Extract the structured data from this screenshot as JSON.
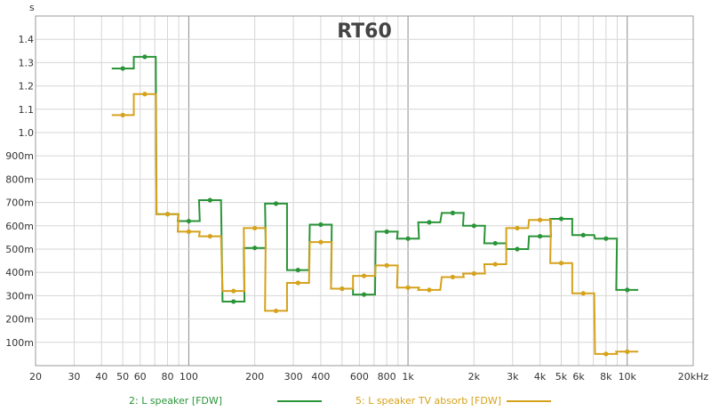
{
  "chart_data": {
    "type": "line",
    "title": "RT60",
    "ylabel": "s",
    "xlabel": "",
    "x_scale": "log",
    "xlim": [
      20,
      20000
    ],
    "ylim": [
      0,
      1.5
    ],
    "grid": true,
    "legend_position": "bottom",
    "x_ticks": [
      {
        "value": 20,
        "label": "20"
      },
      {
        "value": 30,
        "label": "30"
      },
      {
        "value": 40,
        "label": "40"
      },
      {
        "value": 50,
        "label": "50"
      },
      {
        "value": 60,
        "label": "60"
      },
      {
        "value": 80,
        "label": "80"
      },
      {
        "value": 100,
        "label": "100"
      },
      {
        "value": 200,
        "label": "200"
      },
      {
        "value": 300,
        "label": "300"
      },
      {
        "value": 400,
        "label": "400"
      },
      {
        "value": 600,
        "label": "600"
      },
      {
        "value": 800,
        "label": "800"
      },
      {
        "value": 1000,
        "label": "1k"
      },
      {
        "value": 2000,
        "label": "2k"
      },
      {
        "value": 3000,
        "label": "3k"
      },
      {
        "value": 4000,
        "label": "4k"
      },
      {
        "value": 5000,
        "label": "5k"
      },
      {
        "value": 6000,
        "label": "6k"
      },
      {
        "value": 8000,
        "label": "8k"
      },
      {
        "value": 10000,
        "label": "10k"
      },
      {
        "value": 20000,
        "label": "20kHz"
      }
    ],
    "y_ticks": [
      {
        "value": 0.1,
        "label": "100m"
      },
      {
        "value": 0.2,
        "label": "200m"
      },
      {
        "value": 0.3,
        "label": "300m"
      },
      {
        "value": 0.4,
        "label": "400m"
      },
      {
        "value": 0.5,
        "label": "500m"
      },
      {
        "value": 0.6,
        "label": "600m"
      },
      {
        "value": 0.7,
        "label": "700m"
      },
      {
        "value": 0.8,
        "label": "800m"
      },
      {
        "value": 0.9,
        "label": "900m"
      },
      {
        "value": 1.0,
        "label": "1.0"
      },
      {
        "value": 1.1,
        "label": "1.1"
      },
      {
        "value": 1.2,
        "label": "1.2"
      },
      {
        "value": 1.3,
        "label": "1.3"
      },
      {
        "value": 1.4,
        "label": "1.4"
      }
    ],
    "x": [
      50,
      63,
      80,
      100,
      125,
      160,
      200,
      250,
      315,
      400,
      500,
      630,
      800,
      1000,
      1250,
      1600,
      2000,
      2500,
      3150,
      4000,
      5000,
      6300,
      8000,
      10000
    ],
    "series": [
      {
        "name": "2: L speaker [FDW]",
        "color": "#2a9438",
        "values": [
          1.275,
          1.325,
          0.65,
          0.62,
          0.71,
          0.275,
          0.505,
          0.695,
          0.41,
          0.605,
          0.33,
          0.305,
          0.575,
          0.545,
          0.615,
          0.655,
          0.6,
          0.525,
          0.5,
          0.555,
          0.63,
          0.56,
          0.545,
          0.325
        ]
      },
      {
        "name": "5: L speaker TV absorb [FDW]",
        "color": "#d6a21c",
        "values": [
          1.075,
          1.165,
          0.65,
          0.575,
          0.555,
          0.32,
          0.59,
          0.235,
          0.355,
          0.53,
          0.33,
          0.385,
          0.43,
          0.335,
          0.325,
          0.38,
          0.395,
          0.435,
          0.59,
          0.625,
          0.44,
          0.31,
          0.05,
          0.06
        ]
      }
    ]
  }
}
